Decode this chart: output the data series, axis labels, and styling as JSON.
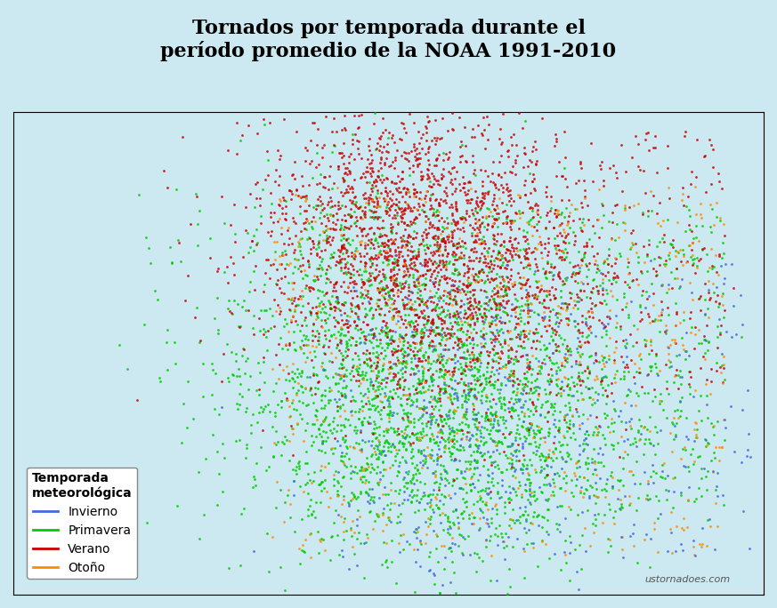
{
  "title": "Tornados por temporada durante el\nperíodo promedio de la NOAA 1991-2010",
  "title_fontsize": 16,
  "title_fontweight": "bold",
  "background_color": "#cce8f0",
  "map_land_color": "#e8e8e8",
  "map_border_color": "#888888",
  "watermark": "ustornadoes.com",
  "legend_title": "Temporada\nmeteorológica",
  "seasons": [
    "Invierno",
    "Primavera",
    "Verano",
    "Otoño"
  ],
  "season_colors": [
    "#4169e1",
    "#00cc00",
    "#cc0000",
    "#ff8c00"
  ],
  "season_markers": [
    "o",
    "o",
    "o",
    "o"
  ],
  "figsize": [
    8.73,
    6.84
  ],
  "dpi": 100
}
